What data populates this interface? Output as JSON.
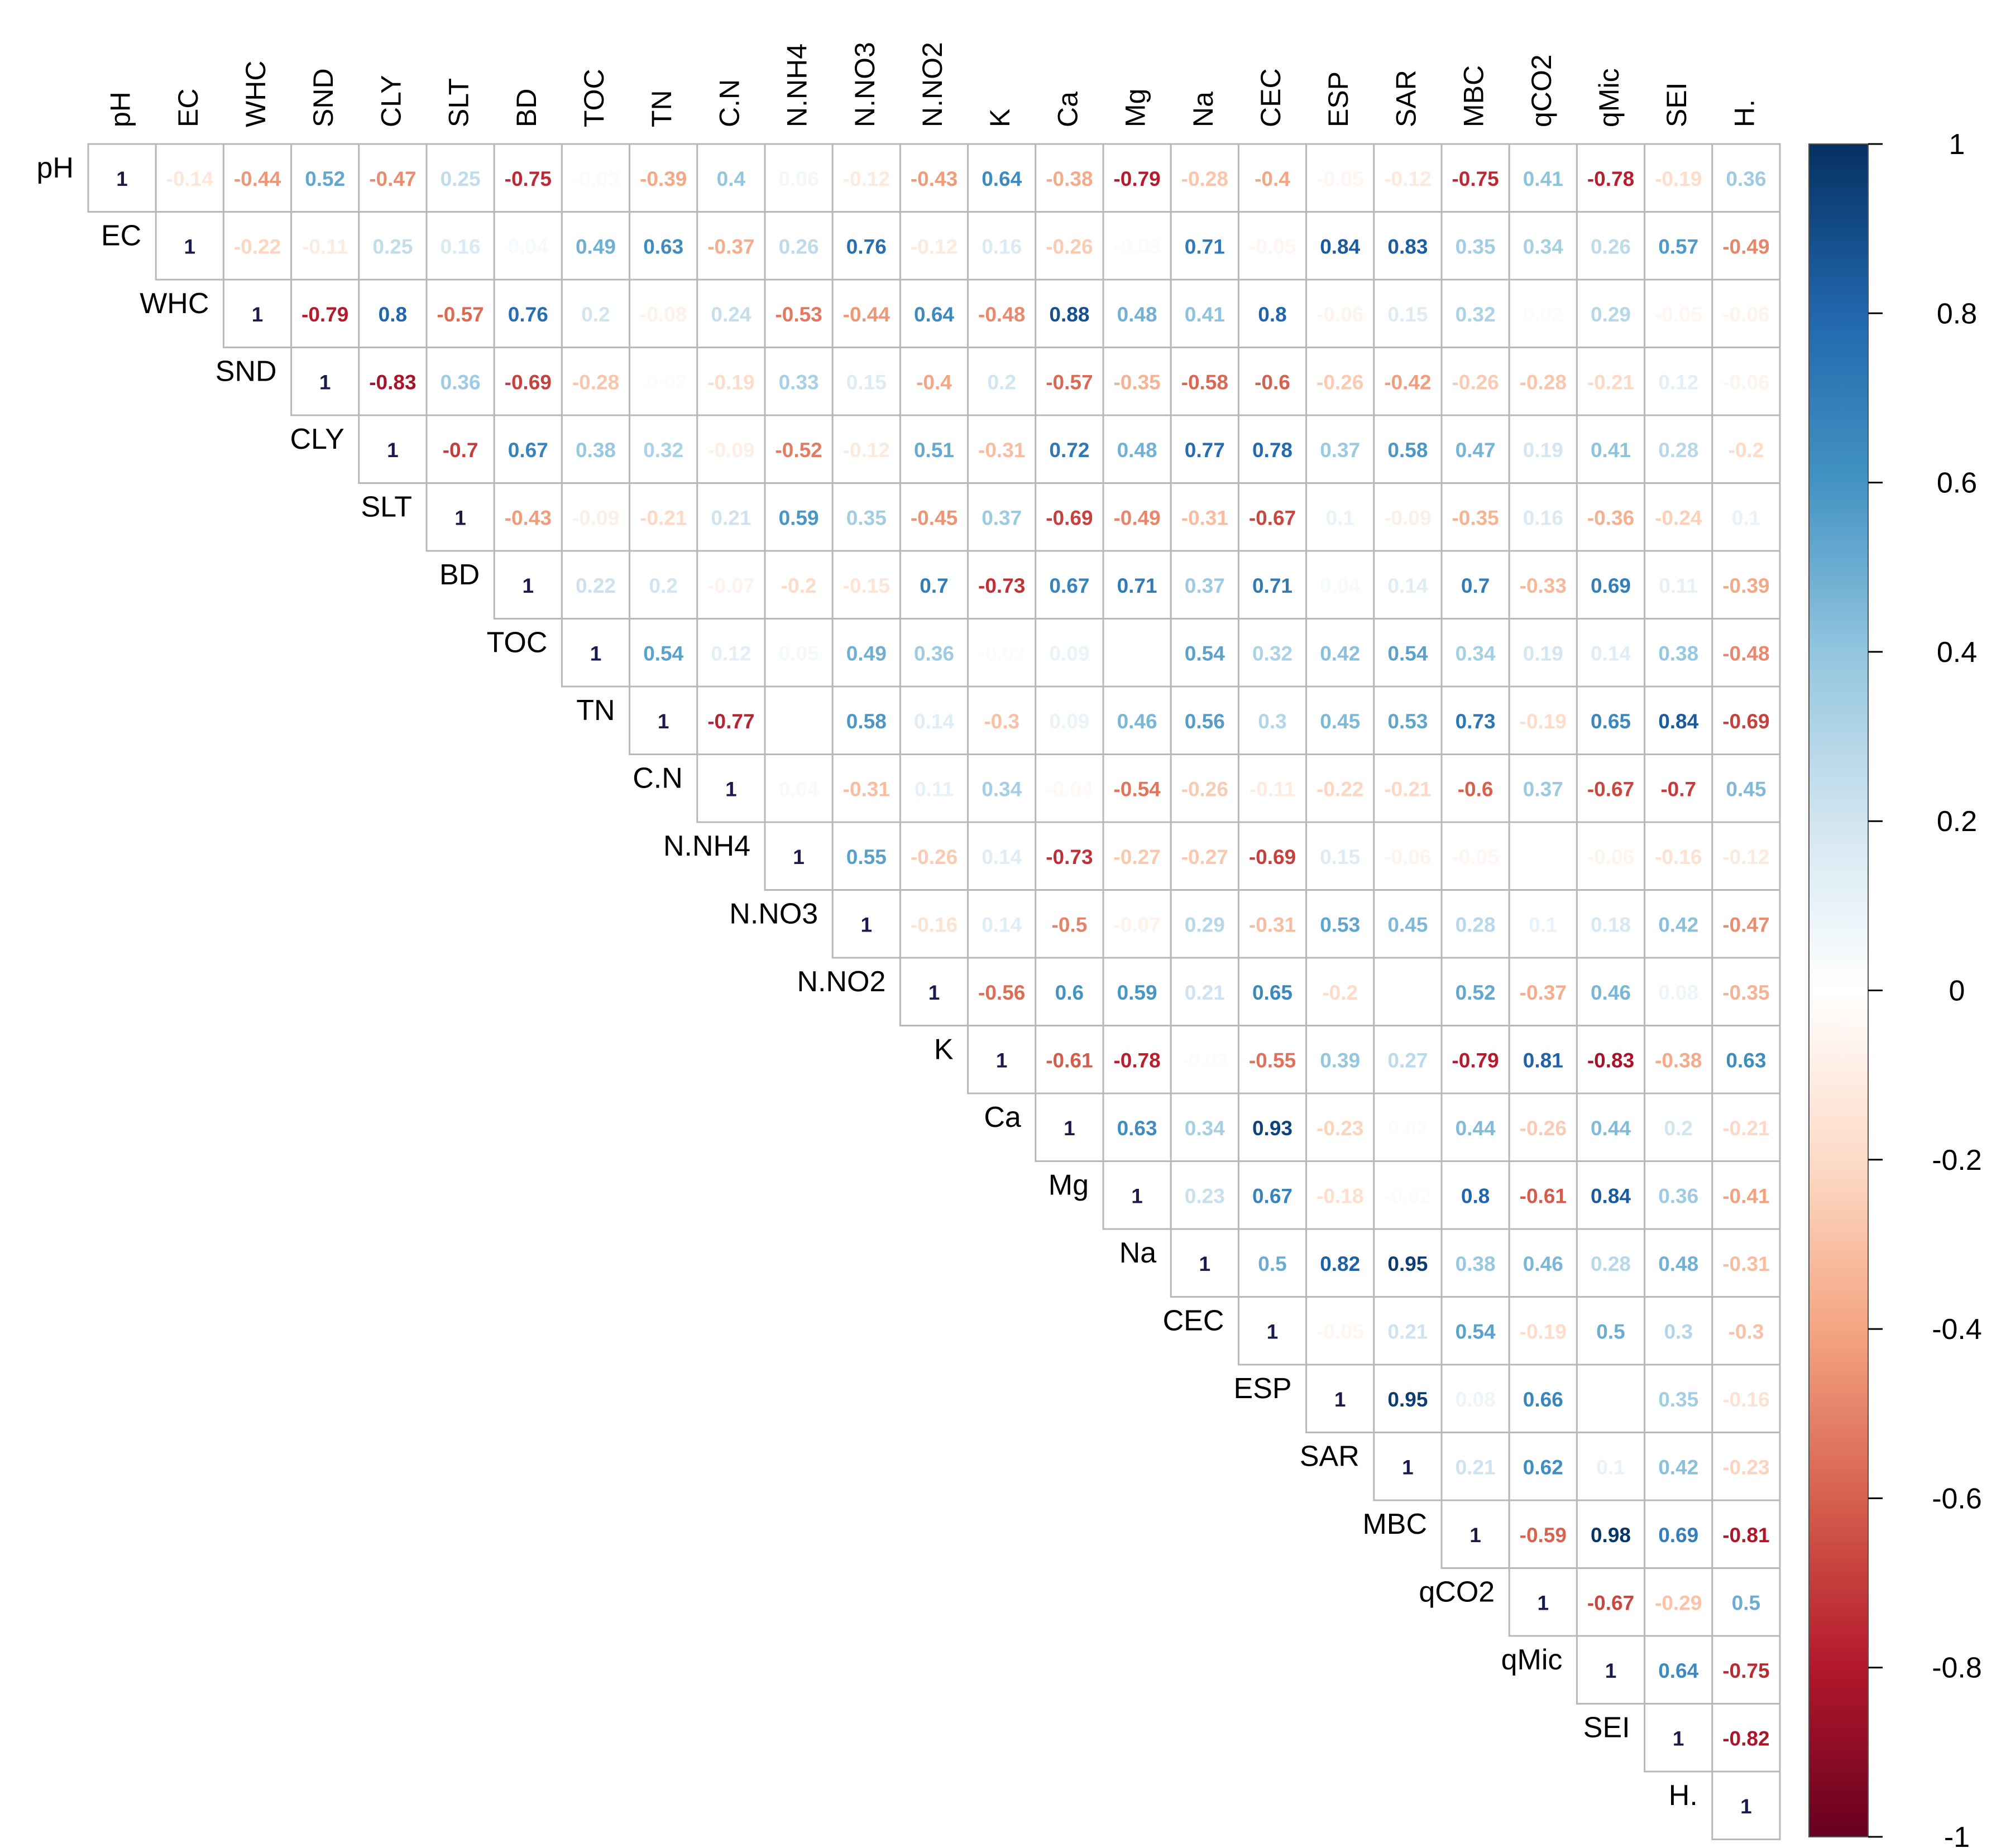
{
  "chart_data": {
    "type": "heatmap",
    "title": "",
    "layout": "upper-triangle correlation matrix",
    "variables": [
      "pH",
      "EC",
      "WHC",
      "SND",
      "CLY",
      "SLT",
      "BD",
      "TOC",
      "TN",
      "C.N",
      "N.NH4",
      "N.NO3",
      "N.NO2",
      "K",
      "Ca",
      "Mg",
      "Na",
      "CEC",
      "ESP",
      "SAR",
      "MBC",
      "qCO2",
      "qMic",
      "SEI",
      "H."
    ],
    "rows": [
      [
        "1",
        "-0.14",
        "-0.44",
        "0.52",
        "-0.47",
        "0.25",
        "-0.75",
        "-0.03",
        "-0.39",
        "0.4",
        "0.06",
        "-0.12",
        "-0.43",
        "0.64",
        "-0.38",
        "-0.79",
        "-0.28",
        "-0.4",
        "-0.05",
        "-0.12",
        "-0.75",
        "0.41",
        "-0.78",
        "-0.19",
        "0.36"
      ],
      [
        "1",
        "-0.22",
        "-0.11",
        "0.25",
        "0.16",
        "0.04",
        "0.49",
        "0.63",
        "-0.37",
        "0.26",
        "0.76",
        "-0.12",
        "0.16",
        "-0.26",
        "-0.03",
        "0.71",
        "-0.05",
        "0.84",
        "0.83",
        "0.35",
        "0.34",
        "0.26",
        "0.57",
        "-0.49"
      ],
      [
        "1",
        "-0.79",
        "0.8",
        "-0.57",
        "0.76",
        "0.2",
        "-0.08",
        "0.24",
        "-0.53",
        "-0.44",
        "0.64",
        "-0.48",
        "0.88",
        "0.48",
        "0.41",
        "0.8",
        "-0.06",
        "0.15",
        "0.32",
        "0.02",
        "0.29",
        "-0.05",
        "-0.06"
      ],
      [
        "1",
        "-0.83",
        "0.36",
        "-0.69",
        "-0.28",
        "-0.02",
        "-0.19",
        "0.33",
        "0.15",
        "-0.4",
        "0.2",
        "-0.57",
        "-0.35",
        "-0.58",
        "-0.6",
        "-0.26",
        "-0.42",
        "-0.26",
        "-0.28",
        "-0.21",
        "0.12",
        "-0.06"
      ],
      [
        "1",
        "-0.7",
        "0.67",
        "0.38",
        "0.32",
        "-0.09",
        "-0.52",
        "-0.12",
        "0.51",
        "-0.31",
        "0.72",
        "0.48",
        "0.77",
        "0.78",
        "0.37",
        "0.58",
        "0.47",
        "0.19",
        "0.41",
        "0.28",
        "-0.2"
      ],
      [
        "1",
        "-0.43",
        "-0.09",
        "-0.21",
        "0.21",
        "0.59",
        "0.35",
        "-0.45",
        "0.37",
        "-0.69",
        "-0.49",
        "-0.31",
        "-0.67",
        "0.1",
        "-0.09",
        "-0.35",
        "0.16",
        "-0.36",
        "-0.24",
        "0.1"
      ],
      [
        "1",
        "0.22",
        "0.2",
        "-0.07",
        "-0.2",
        "-0.15",
        "0.7",
        "-0.73",
        "0.67",
        "0.71",
        "0.37",
        "0.71",
        "0.04",
        "0.14",
        "0.7",
        "-0.33",
        "0.69",
        "0.11",
        "-0.39"
      ],
      [
        "1",
        "0.54",
        "0.12",
        "0.05",
        "0.49",
        "0.36",
        "-0.02",
        "0.09",
        "",
        "0.54",
        "0.32",
        "0.42",
        "0.54",
        "0.34",
        "0.19",
        "0.14",
        "0.38",
        "-0.48"
      ],
      [
        "1",
        "-0.77",
        "",
        "0.58",
        "0.14",
        "-0.3",
        "0.09",
        "0.46",
        "0.56",
        "0.3",
        "0.45",
        "0.53",
        "0.73",
        "-0.19",
        "0.65",
        "0.84",
        "-0.69"
      ],
      [
        "1",
        "0.04",
        "-0.31",
        "0.11",
        "0.34",
        "-0.04",
        "-0.54",
        "-0.26",
        "-0.11",
        "-0.22",
        "-0.21",
        "-0.6",
        "0.37",
        "-0.67",
        "-0.7",
        "0.45"
      ],
      [
        "1",
        "0.55",
        "-0.26",
        "0.14",
        "-0.73",
        "-0.27",
        "-0.27",
        "-0.69",
        "0.15",
        "-0.06",
        "-0.05",
        "",
        "-0.06",
        "-0.16",
        "-0.12"
      ],
      [
        "1",
        "-0.16",
        "0.14",
        "-0.5",
        "-0.07",
        "0.29",
        "-0.31",
        "0.53",
        "0.45",
        "0.28",
        "0.1",
        "0.18",
        "0.42",
        "-0.47"
      ],
      [
        "1",
        "-0.56",
        "0.6",
        "0.59",
        "0.21",
        "0.65",
        "-0.2",
        "",
        "0.52",
        "-0.37",
        "0.46",
        "0.08",
        "-0.35"
      ],
      [
        "1",
        "-0.61",
        "-0.78",
        "-0.02",
        "-0.55",
        "0.39",
        "0.27",
        "-0.79",
        "0.81",
        "-0.83",
        "-0.38",
        "0.63"
      ],
      [
        "1",
        "0.63",
        "0.34",
        "0.93",
        "-0.23",
        "0.02",
        "0.44",
        "-0.26",
        "0.44",
        "0.2",
        "-0.21"
      ],
      [
        "1",
        "0.23",
        "0.67",
        "-0.18",
        "-0.02",
        "0.8",
        "-0.61",
        "0.84",
        "0.36",
        "-0.41"
      ],
      [
        "1",
        "0.5",
        "0.82",
        "0.95",
        "0.38",
        "0.46",
        "0.28",
        "0.48",
        "-0.31"
      ],
      [
        "1",
        "-0.05",
        "0.21",
        "0.54",
        "-0.19",
        "0.5",
        "0.3",
        "-0.3"
      ],
      [
        "1",
        "0.95",
        "0.08",
        "0.66",
        "",
        "0.35",
        "-0.16"
      ],
      [
        "1",
        "0.21",
        "0.62",
        "0.1",
        "0.42",
        "-0.23"
      ],
      [
        "1",
        "-0.59",
        "0.98",
        "0.69",
        "-0.81"
      ],
      [
        "1",
        "-0.67",
        "-0.29",
        "0.5"
      ],
      [
        "1",
        "0.64",
        "-0.75"
      ],
      [
        "1",
        "-0.82"
      ],
      [
        "1"
      ]
    ],
    "colorbar": {
      "range": [
        -1,
        1
      ],
      "ticks": [
        "1",
        "0.8",
        "0.6",
        "0.4",
        "0.2",
        "0",
        "-0.2",
        "-0.4",
        "-0.6",
        "-0.8",
        "-1"
      ],
      "low_color": "#67001f",
      "mid_color": "#ffffff",
      "high_color": "#053061"
    }
  }
}
